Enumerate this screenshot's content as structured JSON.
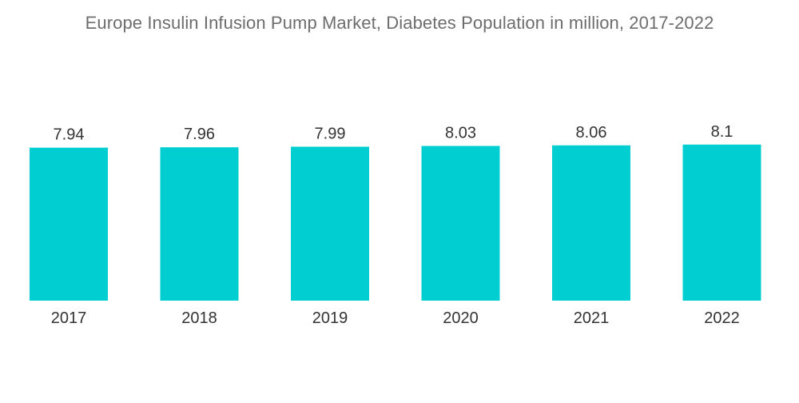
{
  "chart_data": {
    "type": "bar",
    "title": "Europe Insulin Infusion Pump Market, Diabetes Population in million, 2017-2022",
    "categories": [
      "2017",
      "2018",
      "2019",
      "2020",
      "2021",
      "2022"
    ],
    "values": [
      7.94,
      7.96,
      7.99,
      8.03,
      8.06,
      8.1
    ],
    "value_labels": [
      "7.94",
      "7.96",
      "7.99",
      "8.03",
      "8.06",
      "8.1"
    ],
    "xlabel": "",
    "ylabel": "",
    "ylim": [
      0,
      8.3
    ],
    "grid": false,
    "legend": "none",
    "bar_color": "#00CED1"
  }
}
